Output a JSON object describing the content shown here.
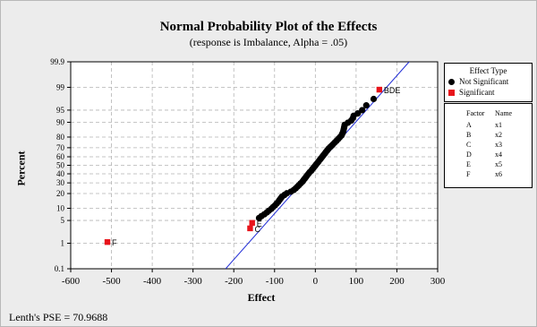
{
  "chart_data": {
    "type": "scatter",
    "title": "Normal Probability Plot of the Effects",
    "subtitle": "(response is Imbalance, Alpha = .05)",
    "xlabel": "Effect",
    "ylabel": "Percent",
    "xlim": [
      -600,
      300
    ],
    "x_ticks": [
      "-600",
      "-500",
      "-400",
      "-300",
      "-200",
      "-100",
      "0",
      "100",
      "200",
      "300"
    ],
    "y_ticks": [
      "0.1",
      "1",
      "5",
      "10",
      "20",
      "30",
      "40",
      "50",
      "60",
      "70",
      "80",
      "90",
      "95",
      "99",
      "99.9"
    ],
    "y_scale": "normal-probability",
    "grid": true,
    "colors": {
      "not_significant": "#000000",
      "significant": "#e8141b",
      "fit_line": "#1f2bd6"
    },
    "fit_line": {
      "x": [
        -220,
        230
      ],
      "y": [
        0.1,
        99.9
      ]
    },
    "series": [
      {
        "name": "Not Significant",
        "points": [
          [
            -138,
            5.8
          ],
          [
            -132,
            6.5
          ],
          [
            -125,
            7.2
          ],
          [
            -119,
            8.0
          ],
          [
            -114,
            8.8
          ],
          [
            -108,
            9.7
          ],
          [
            -104,
            10.6
          ],
          [
            -99,
            11.6
          ],
          [
            -95,
            12.7
          ],
          [
            -91,
            13.8
          ],
          [
            -88,
            15.0
          ],
          [
            -85,
            16.2
          ],
          [
            -82,
            17.4
          ],
          [
            -76,
            18.8
          ],
          [
            -70,
            20.2
          ],
          [
            -60,
            21.6
          ],
          [
            -53,
            23.1
          ],
          [
            -48,
            24.6
          ],
          [
            -44,
            26.2
          ],
          [
            -40,
            27.8
          ],
          [
            -36,
            29.5
          ],
          [
            -32,
            31.1
          ],
          [
            -29,
            32.9
          ],
          [
            -26,
            34.6
          ],
          [
            -23,
            36.4
          ],
          [
            -20,
            38.2
          ],
          [
            -17,
            40.0
          ],
          [
            -14,
            41.8
          ],
          [
            -10,
            43.6
          ],
          [
            -7,
            45.5
          ],
          [
            -4,
            47.3
          ],
          [
            -1,
            49.1
          ],
          [
            2,
            51.0
          ],
          [
            5,
            52.8
          ],
          [
            8,
            54.6
          ],
          [
            11,
            56.5
          ],
          [
            14,
            58.3
          ],
          [
            17,
            60.1
          ],
          [
            20,
            61.9
          ],
          [
            23,
            63.6
          ],
          [
            26,
            65.4
          ],
          [
            29,
            67.1
          ],
          [
            32,
            68.8
          ],
          [
            36,
            70.5
          ],
          [
            40,
            72.1
          ],
          [
            44,
            73.7
          ],
          [
            48,
            75.3
          ],
          [
            52,
            76.8
          ],
          [
            56,
            78.3
          ],
          [
            60,
            79.8
          ],
          [
            64,
            81.2
          ],
          [
            66,
            82.6
          ],
          [
            68,
            83.9
          ],
          [
            69,
            85.1
          ],
          [
            70,
            86.3
          ],
          [
            71,
            87.5
          ],
          [
            72,
            88.6
          ],
          [
            80,
            89.8
          ],
          [
            88,
            90.9
          ],
          [
            92,
            92.0
          ],
          [
            94,
            93.0
          ],
          [
            104,
            93.9
          ],
          [
            115,
            95.0
          ],
          [
            125,
            96.3
          ],
          [
            143,
            97.6
          ]
        ]
      },
      {
        "name": "Significant",
        "points": [
          {
            "x": -510,
            "y": 1.1,
            "label": "F"
          },
          {
            "x": -160,
            "y": 3.0,
            "label": "C"
          },
          {
            "x": -155,
            "y": 4.3,
            "label": "E"
          },
          {
            "x": 157,
            "y": 98.8,
            "label": "BDE"
          }
        ]
      }
    ]
  },
  "legend": {
    "title": "Effect Type",
    "items": [
      "Not Significant",
      "Significant"
    ]
  },
  "factor_table": {
    "headers": [
      "Factor",
      "Name"
    ],
    "rows": [
      [
        "A",
        "x1"
      ],
      [
        "B",
        "x2"
      ],
      [
        "C",
        "x3"
      ],
      [
        "D",
        "x4"
      ],
      [
        "E",
        "x5"
      ],
      [
        "F",
        "x6"
      ]
    ]
  },
  "footer": "Lenth's PSE = 70.9688"
}
